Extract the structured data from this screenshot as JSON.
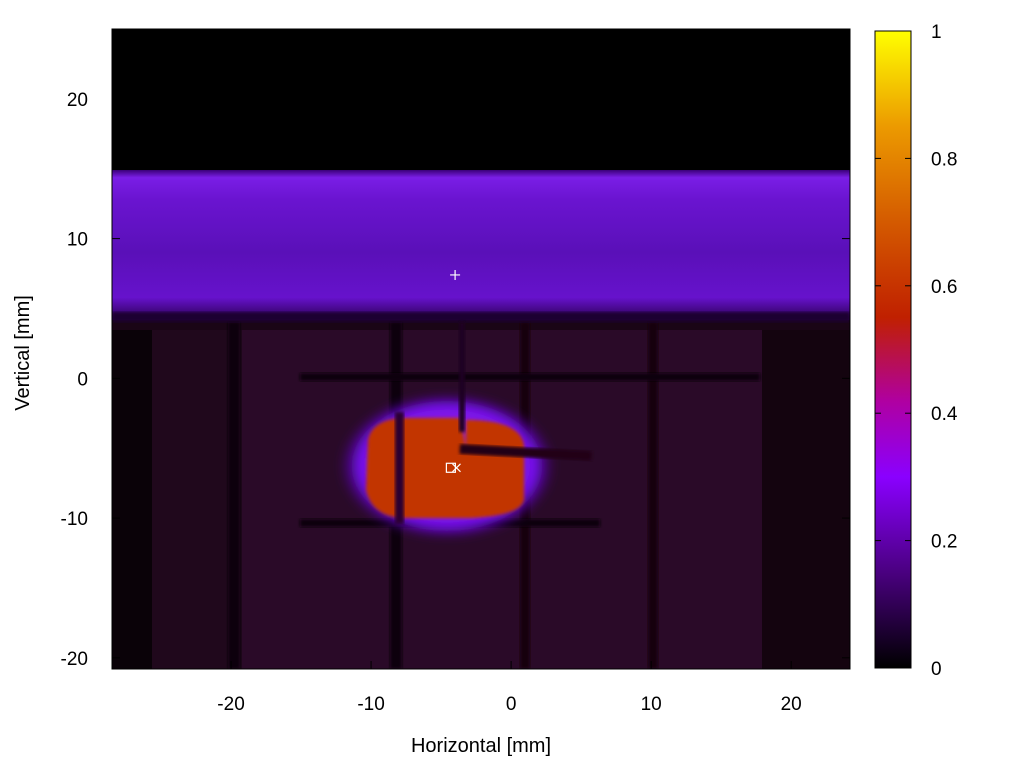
{
  "chart_data": {
    "type": "heatmap",
    "title": "",
    "xlabel": "Horizontal [mm]",
    "ylabel": "Vertical [mm]",
    "xlim": [
      -28.5,
      24.2
    ],
    "ylim": [
      -20.8,
      25.0
    ],
    "xticks": [
      -20,
      -10,
      0,
      10,
      20
    ],
    "yticks": [
      -20,
      -10,
      0,
      10,
      20
    ],
    "colorbar": {
      "range": [
        0,
        1
      ],
      "ticks": [
        0,
        0.2,
        0.4,
        0.6,
        0.8,
        1
      ],
      "colormap": [
        "#000000",
        "#8000ff",
        "#c02000",
        "#ffff00"
      ]
    },
    "regions": [
      {
        "name": "background",
        "x": [
          -28.5,
          24.2
        ],
        "y": [
          -20.8,
          15.0
        ],
        "value": 0.03
      },
      {
        "name": "upper-band",
        "x": [
          -28.5,
          24.2
        ],
        "y": [
          4.5,
          15.0
        ],
        "value": 0.18
      },
      {
        "name": "hot-spot",
        "center": [
          -5.5,
          -6.3
        ],
        "value": 0.52
      }
    ],
    "markers": [
      {
        "symbol": "+",
        "x": -4.0,
        "y": 7.4
      },
      {
        "symbol": "□",
        "x": -4.3,
        "y": -6.4
      },
      {
        "symbol": "×",
        "x": -3.9,
        "y": -6.4
      }
    ]
  },
  "colors": {
    "black": "#000000",
    "purple": "#7a00ff",
    "red": "#c63a00",
    "yellow": "#ffff00",
    "marker": "#ffffff"
  }
}
